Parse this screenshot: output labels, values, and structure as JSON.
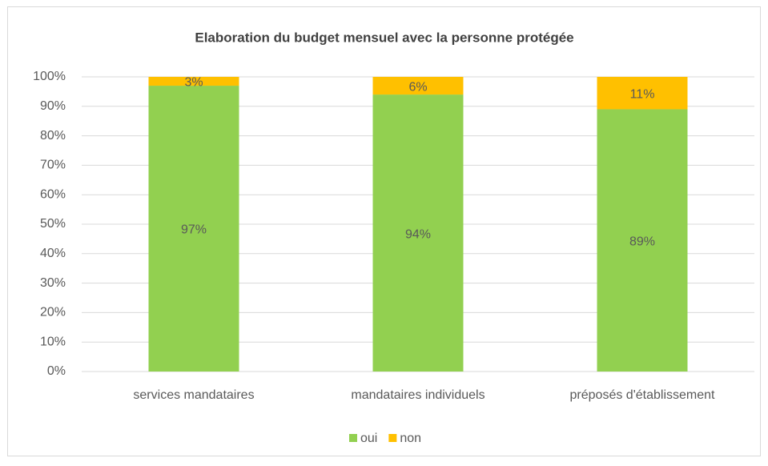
{
  "chart_data": {
    "type": "stacked_bar",
    "title": "Elaboration du budget mensuel avec la personne protégée",
    "categories": [
      "services mandataires",
      "mandataires individuels",
      "préposés d'établissement"
    ],
    "series": [
      {
        "name": "oui",
        "color": "#92d050",
        "values": [
          97,
          94,
          89
        ],
        "value_labels": [
          "97%",
          "94%",
          "89%"
        ]
      },
      {
        "name": "non",
        "color": "#ffc000",
        "values": [
          3,
          6,
          11
        ],
        "value_labels": [
          "3%",
          "6%",
          "11%"
        ]
      }
    ],
    "ylim": [
      0,
      100
    ],
    "yticks": [
      {
        "value": 0,
        "label": "0%"
      },
      {
        "value": 10,
        "label": "10%"
      },
      {
        "value": 20,
        "label": "20%"
      },
      {
        "value": 30,
        "label": "30%"
      },
      {
        "value": 40,
        "label": "40%"
      },
      {
        "value": 50,
        "label": "50%"
      },
      {
        "value": 60,
        "label": "60%"
      },
      {
        "value": 70,
        "label": "70%"
      },
      {
        "value": 80,
        "label": "80%"
      },
      {
        "value": 90,
        "label": "90%"
      },
      {
        "value": 100,
        "label": "100%"
      }
    ],
    "grid": true,
    "legend": "bottom"
  }
}
